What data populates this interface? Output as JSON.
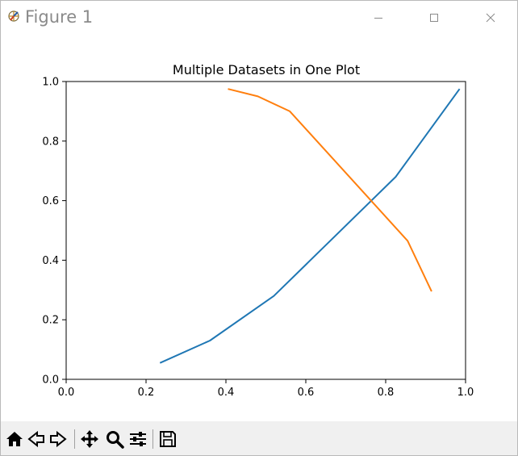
{
  "window": {
    "title": "Figure 1"
  },
  "chart_data": {
    "type": "line",
    "title": "Multiple Datasets in One Plot",
    "xlabel": "",
    "ylabel": "",
    "xlim": [
      0.0,
      1.0
    ],
    "ylim": [
      0.0,
      1.0
    ],
    "xticks": [
      "0.0",
      "0.2",
      "0.4",
      "0.6",
      "0.8",
      "1.0"
    ],
    "yticks": [
      "0.0",
      "0.2",
      "0.4",
      "0.6",
      "0.8",
      "1.0"
    ],
    "grid": false,
    "series": [
      {
        "color": "#1f77b4",
        "x": [
          0.235,
          0.36,
          0.52,
          0.825,
          0.985
        ],
        "y": [
          0.055,
          0.13,
          0.28,
          0.68,
          0.975
        ]
      },
      {
        "color": "#ff7f0e",
        "x": [
          0.405,
          0.48,
          0.56,
          0.855,
          0.915
        ],
        "y": [
          0.975,
          0.95,
          0.9,
          0.465,
          0.295
        ]
      }
    ]
  },
  "toolbar": {
    "items": [
      "home-icon",
      "back-icon",
      "forward-icon",
      "pan-icon",
      "zoom-icon",
      "configure-icon",
      "save-icon"
    ]
  }
}
